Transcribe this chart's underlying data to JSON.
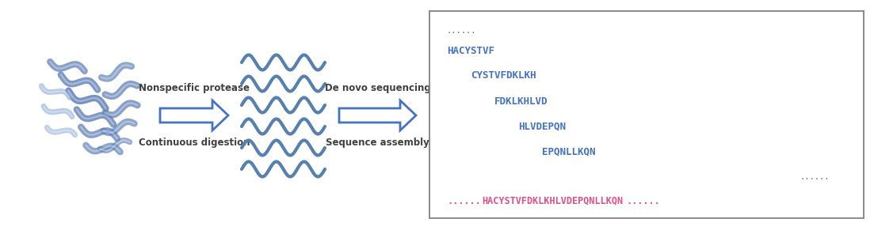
{
  "fig_width": 11.03,
  "fig_height": 2.91,
  "bg_color": "#ffffff",
  "arrow_color": "#4472C4",
  "arrow_face_color": "#ffffff",
  "text_color_dark": "#404040",
  "text_color_blue": "#4472C4",
  "text_color_pink": "#E05080",
  "label_nonspecific": "Nonspecific protease",
  "label_continuous": "Continuous digestion",
  "label_denovo": "De novo sequencing",
  "label_assembly": "Sequence assembly",
  "peptides": [
    "HACYSTVF",
    "CYSTVFDKLKH",
    "FDKLKHLVD",
    "HLVDEPQN",
    "EPQNLLKQN"
  ],
  "dots_top": "......",
  "dots_bottom": "......",
  "full_sequence": "HACYSTVFDKLKHLVDEPQNLLKQN",
  "wave_color": "#5580B0",
  "box_edge_color": "#808080",
  "protein_color": "#6080B8",
  "protein_light": "#8BAAD8"
}
